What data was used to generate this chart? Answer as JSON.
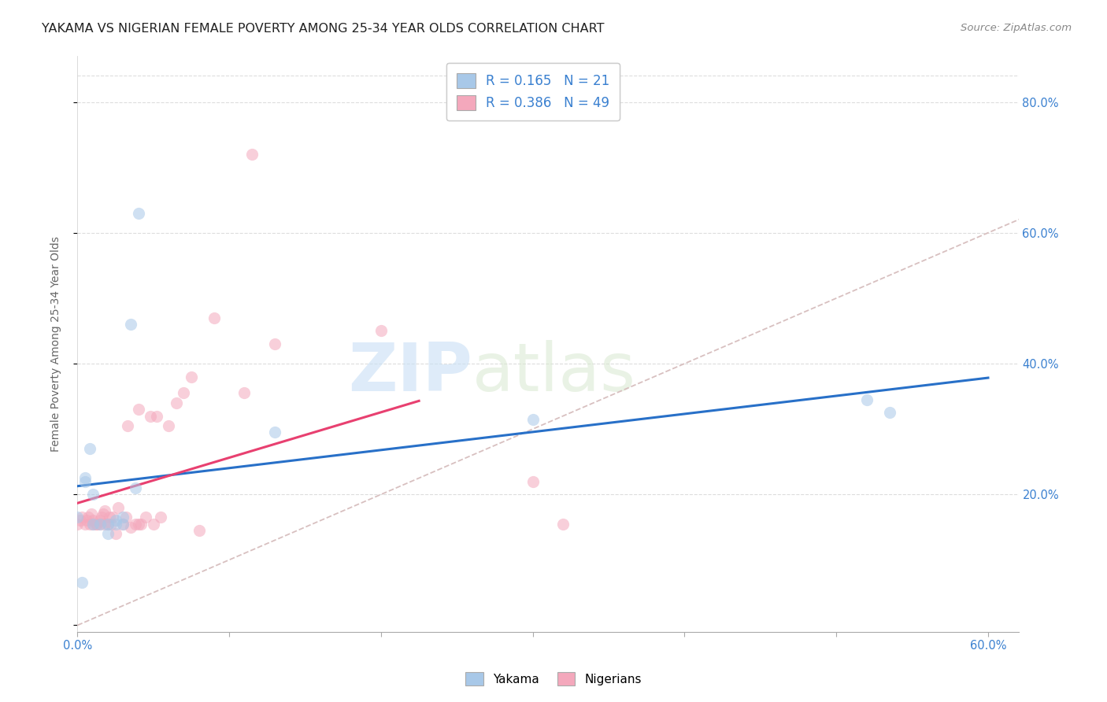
{
  "title": "YAKAMA VS NIGERIAN FEMALE POVERTY AMONG 25-34 YEAR OLDS CORRELATION CHART",
  "source": "Source: ZipAtlas.com",
  "ylabel": "Female Poverty Among 25-34 Year Olds",
  "xlim": [
    0.0,
    0.62
  ],
  "ylim": [
    -0.01,
    0.87
  ],
  "ytick_positions": [
    0.0,
    0.2,
    0.4,
    0.6,
    0.8
  ],
  "ytick_labels_right": [
    "",
    "20.0%",
    "40.0%",
    "60.0%",
    "80.0%"
  ],
  "xtick_positions": [
    0.0,
    0.1,
    0.2,
    0.3,
    0.4,
    0.5,
    0.6
  ],
  "xtick_labels": [
    "0.0%",
    "",
    "",
    "",
    "",
    "",
    "60.0%"
  ],
  "yakama_color": "#a8c8e8",
  "nigerian_color": "#f4a8bc",
  "trendline_yakama_color": "#2870c8",
  "trendline_nigerian_color": "#e84070",
  "diagonal_color": "#d8c0c0",
  "R_yakama": "0.165",
  "N_yakama": "21",
  "R_nigerian": "0.386",
  "N_nigerian": "49",
  "watermark_zip": "ZIP",
  "watermark_atlas": "atlas",
  "yakama_x": [
    0.003,
    0.005,
    0.008,
    0.01,
    0.01,
    0.015,
    0.02,
    0.02,
    0.025,
    0.025,
    0.03,
    0.03,
    0.035,
    0.04,
    0.13,
    0.3,
    0.52,
    0.535,
    0.0,
    0.005,
    0.038
  ],
  "yakama_y": [
    0.065,
    0.22,
    0.27,
    0.155,
    0.2,
    0.155,
    0.14,
    0.155,
    0.155,
    0.16,
    0.155,
    0.165,
    0.46,
    0.63,
    0.295,
    0.315,
    0.345,
    0.325,
    0.165,
    0.225,
    0.21
  ],
  "nigerian_x": [
    0.0,
    0.002,
    0.003,
    0.005,
    0.006,
    0.007,
    0.008,
    0.009,
    0.01,
    0.01,
    0.012,
    0.013,
    0.015,
    0.015,
    0.016,
    0.017,
    0.018,
    0.018,
    0.02,
    0.021,
    0.022,
    0.023,
    0.025,
    0.027,
    0.03,
    0.032,
    0.033,
    0.035,
    0.038,
    0.04,
    0.04,
    0.042,
    0.045,
    0.048,
    0.05,
    0.052,
    0.055,
    0.06,
    0.065,
    0.07,
    0.075,
    0.08,
    0.09,
    0.11,
    0.115,
    0.13,
    0.2,
    0.3,
    0.32
  ],
  "nigerian_y": [
    0.155,
    0.16,
    0.165,
    0.155,
    0.16,
    0.165,
    0.155,
    0.17,
    0.155,
    0.16,
    0.155,
    0.155,
    0.155,
    0.16,
    0.165,
    0.17,
    0.175,
    0.155,
    0.155,
    0.165,
    0.155,
    0.165,
    0.14,
    0.18,
    0.155,
    0.165,
    0.305,
    0.15,
    0.155,
    0.155,
    0.33,
    0.155,
    0.165,
    0.32,
    0.155,
    0.32,
    0.165,
    0.305,
    0.34,
    0.355,
    0.38,
    0.145,
    0.47,
    0.355,
    0.72,
    0.43,
    0.45,
    0.22,
    0.155
  ],
  "marker_size": 120,
  "marker_alpha": 0.55,
  "title_fontsize": 11.5,
  "axis_label_fontsize": 10,
  "tick_fontsize": 10.5,
  "tick_color": "#3a80d0",
  "legend_fontsize": 12,
  "source_fontsize": 9.5
}
